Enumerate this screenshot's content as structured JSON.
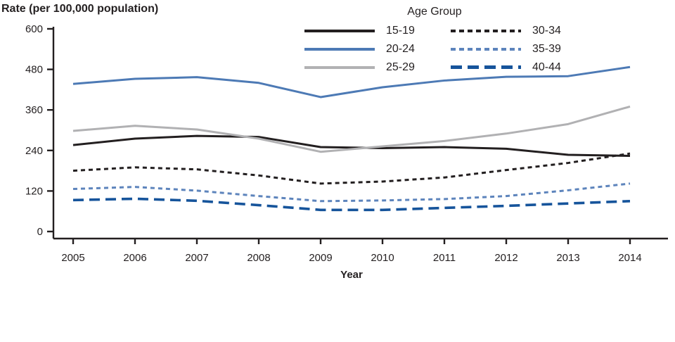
{
  "chart_data": {
    "type": "line",
    "title": "Rate (per 100,000 population)",
    "xlabel": "Year",
    "legend_title": "Age Group",
    "legend_position": "top-center",
    "grid": false,
    "x": [
      2005,
      2006,
      2007,
      2008,
      2009,
      2010,
      2011,
      2012,
      2013,
      2014
    ],
    "ylim": [
      0,
      600
    ],
    "yticks": [
      0,
      120,
      240,
      360,
      480,
      600
    ],
    "axis_color": "#231f20",
    "series": [
      {
        "name": "15-19",
        "style": "solid",
        "color": "#231f20",
        "values": [
          256,
          275,
          283,
          280,
          250,
          247,
          250,
          245,
          227,
          224
        ]
      },
      {
        "name": "20-24",
        "style": "solid",
        "color": "#4d7ab5",
        "values": [
          437,
          452,
          457,
          440,
          398,
          427,
          447,
          458,
          460,
          487
        ]
      },
      {
        "name": "25-29",
        "style": "solid",
        "color": "#b1b1b3",
        "values": [
          298,
          313,
          302,
          275,
          236,
          252,
          268,
          290,
          318,
          370
        ]
      },
      {
        "name": "30-34",
        "style": "dotted",
        "color": "#231f20",
        "values": [
          180,
          190,
          184,
          166,
          142,
          148,
          160,
          182,
          203,
          231
        ]
      },
      {
        "name": "35-39",
        "style": "dotted",
        "color": "#5d84bc",
        "values": [
          126,
          132,
          121,
          105,
          90,
          92,
          96,
          105,
          122,
          142
        ]
      },
      {
        "name": "40-44",
        "style": "dashed",
        "color": "#16549b",
        "values": [
          93,
          97,
          91,
          78,
          64,
          64,
          70,
          76,
          83,
          90
        ]
      }
    ]
  }
}
